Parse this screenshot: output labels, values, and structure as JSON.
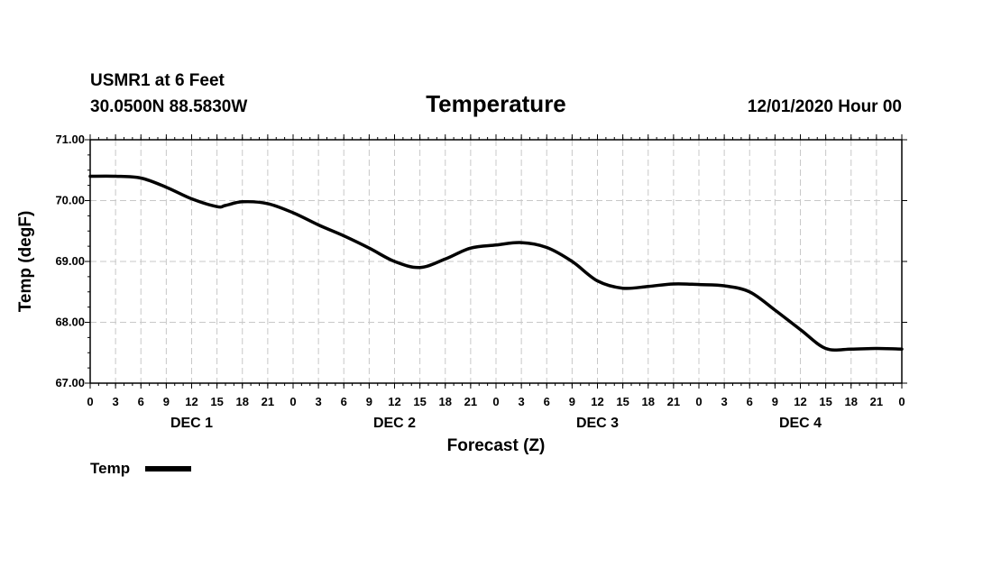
{
  "header": {
    "station": "USMR1 at 6 Feet",
    "coords": "30.0500N 88.5830W",
    "datetime": "12/01/2020 Hour 00"
  },
  "chart_data": {
    "type": "line",
    "title": "Temperature",
    "xlabel": "Forecast (Z)",
    "ylabel": "Temp (degF)",
    "ylim": [
      67.0,
      71.0
    ],
    "xlim": [
      0,
      96
    ],
    "y_ticks": [
      "67.00",
      "68.00",
      "69.00",
      "70.00",
      "71.00"
    ],
    "x_tick_labels": [
      "0",
      "3",
      "6",
      "9",
      "12",
      "15",
      "18",
      "21",
      "0",
      "3",
      "6",
      "9",
      "12",
      "15",
      "18",
      "21",
      "0",
      "3",
      "6",
      "9",
      "12",
      "15",
      "18",
      "21",
      "0",
      "3",
      "6",
      "9",
      "12",
      "15",
      "18",
      "21",
      "0"
    ],
    "day_labels": [
      {
        "label": "DEC 1",
        "hour": 12
      },
      {
        "label": "DEC 2",
        "hour": 36
      },
      {
        "label": "DEC 3",
        "hour": 60
      },
      {
        "label": "DEC 4",
        "hour": 84
      }
    ],
    "grid": true,
    "legend_position": "bottom-left",
    "series": [
      {
        "name": "Temp",
        "x": [
          0,
          3,
          6,
          9,
          12,
          15,
          16,
          18,
          21,
          24,
          27,
          30,
          33,
          36,
          39,
          42,
          45,
          48,
          51,
          54,
          57,
          60,
          63,
          66,
          69,
          72,
          75,
          78,
          81,
          84,
          87,
          90,
          93,
          96
        ],
        "values": [
          70.4,
          70.4,
          70.37,
          70.22,
          70.03,
          69.9,
          69.92,
          69.98,
          69.95,
          69.8,
          69.6,
          69.42,
          69.22,
          69.0,
          68.9,
          69.04,
          69.22,
          69.27,
          69.31,
          69.23,
          69.0,
          68.68,
          68.56,
          68.59,
          68.63,
          68.62,
          68.6,
          68.5,
          68.2,
          67.88,
          67.57,
          67.56,
          67.57,
          67.56
        ]
      }
    ]
  }
}
